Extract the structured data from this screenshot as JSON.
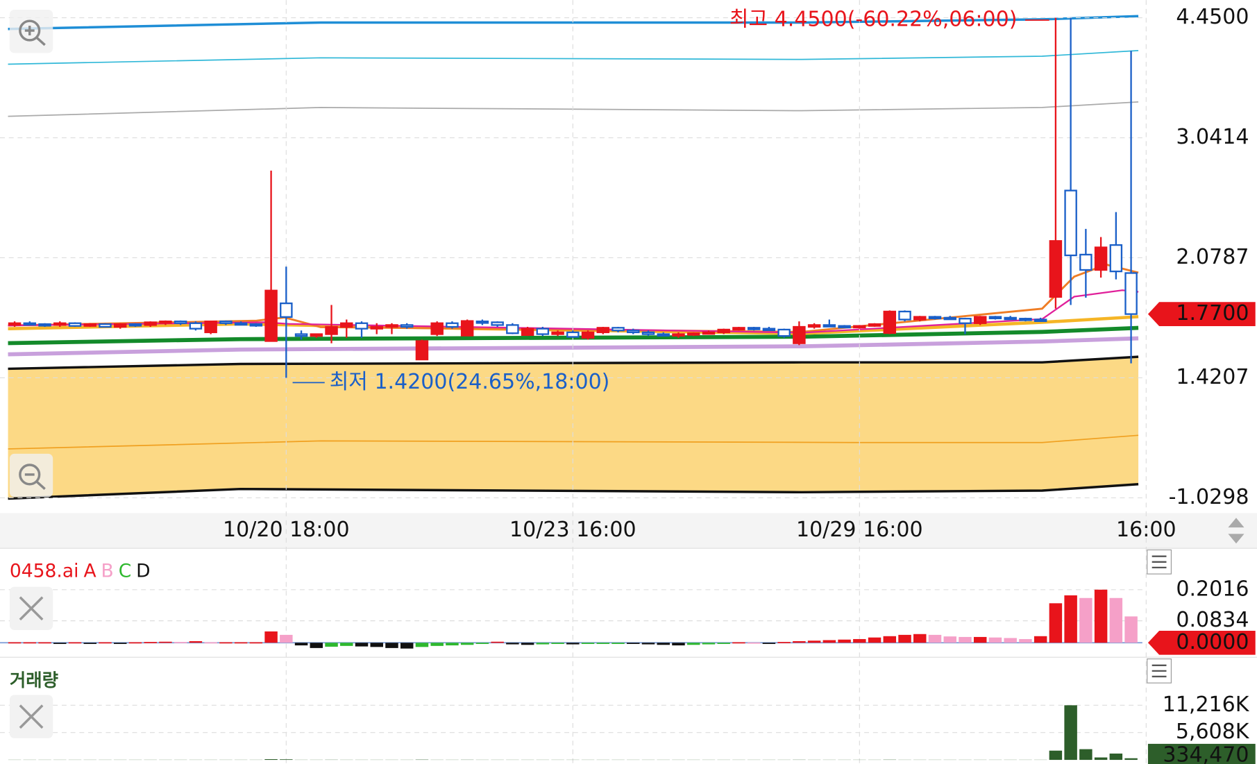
{
  "chart_data": {
    "type": "candlestick",
    "categories": [
      null,
      null,
      null,
      null,
      null,
      null,
      null,
      null,
      null,
      null,
      null,
      null,
      null,
      null,
      null,
      null,
      null,
      null,
      "10/20 18:00",
      null,
      null,
      null,
      null,
      null,
      null,
      null,
      null,
      null,
      null,
      null,
      null,
      null,
      null,
      null,
      null,
      null,
      null,
      "10/23 16:00",
      null,
      null,
      null,
      null,
      null,
      null,
      null,
      null,
      null,
      null,
      null,
      null,
      null,
      null,
      null,
      null,
      null,
      null,
      "10/29 16:00",
      null,
      null,
      null,
      null,
      null,
      null,
      null,
      null,
      null,
      null,
      null,
      null,
      null,
      null,
      null,
      null,
      null,
      null,
      "16:00"
    ],
    "candles": [
      [
        1.715,
        1.73,
        1.7,
        1.72
      ],
      [
        1.72,
        1.73,
        1.71,
        1.715
      ],
      [
        1.715,
        1.72,
        1.7,
        1.71
      ],
      [
        1.71,
        1.73,
        1.7,
        1.72
      ],
      [
        1.72,
        1.725,
        1.7,
        1.705
      ],
      [
        1.705,
        1.72,
        1.7,
        1.715
      ],
      [
        1.715,
        1.72,
        1.7,
        1.7
      ],
      [
        1.7,
        1.72,
        1.69,
        1.715
      ],
      [
        1.715,
        1.72,
        1.7,
        1.71
      ],
      [
        1.71,
        1.73,
        1.7,
        1.725
      ],
      [
        1.725,
        1.735,
        1.71,
        1.73
      ],
      [
        1.73,
        1.735,
        1.71,
        1.72
      ],
      [
        1.72,
        1.73,
        1.68,
        1.69
      ],
      [
        1.67,
        1.73,
        1.66,
        1.73
      ],
      [
        1.73,
        1.735,
        1.71,
        1.72
      ],
      [
        1.72,
        1.73,
        1.71,
        1.715
      ],
      [
        1.715,
        1.72,
        1.7,
        1.71
      ],
      [
        1.622,
        2.778,
        1.62,
        1.899
      ],
      [
        1.829,
        2.03,
        1.42,
        1.754
      ],
      [
        1.66,
        1.68,
        1.63,
        1.65
      ],
      [
        1.65,
        1.66,
        1.64,
        1.66
      ],
      [
        1.66,
        1.82,
        1.61,
        1.7
      ],
      [
        1.7,
        1.74,
        1.64,
        1.72
      ],
      [
        1.72,
        1.73,
        1.64,
        1.69
      ],
      [
        1.69,
        1.72,
        1.66,
        1.7
      ],
      [
        1.7,
        1.72,
        1.66,
        1.71
      ],
      [
        1.71,
        1.72,
        1.69,
        1.7
      ],
      [
        1.521,
        1.63,
        1.52,
        1.622
      ],
      [
        1.66,
        1.73,
        1.65,
        1.72
      ],
      [
        1.72,
        1.73,
        1.69,
        1.7
      ],
      [
        1.652,
        1.74,
        1.65,
        1.732
      ],
      [
        1.73,
        1.74,
        1.71,
        1.725
      ],
      [
        1.725,
        1.73,
        1.7,
        1.71
      ],
      [
        1.71,
        1.72,
        1.66,
        1.665
      ],
      [
        1.655,
        1.7,
        1.65,
        1.69
      ],
      [
        1.69,
        1.7,
        1.65,
        1.66
      ],
      [
        1.66,
        1.68,
        1.65,
        1.67
      ],
      [
        1.67,
        1.68,
        1.64,
        1.645
      ],
      [
        1.64,
        1.68,
        1.63,
        1.67
      ],
      [
        1.67,
        1.7,
        1.66,
        1.695
      ],
      [
        1.695,
        1.7,
        1.67,
        1.68
      ],
      [
        1.68,
        1.69,
        1.66,
        1.67
      ],
      [
        1.67,
        1.68,
        1.65,
        1.66
      ],
      [
        1.66,
        1.67,
        1.65,
        1.655
      ],
      [
        1.655,
        1.67,
        1.64,
        1.66
      ],
      [
        1.66,
        1.67,
        1.65,
        1.665
      ],
      [
        1.665,
        1.68,
        1.66,
        1.67
      ],
      [
        1.67,
        1.69,
        1.66,
        1.685
      ],
      [
        1.685,
        1.7,
        1.68,
        1.695
      ],
      [
        1.695,
        1.7,
        1.68,
        1.69
      ],
      [
        1.69,
        1.7,
        1.68,
        1.685
      ],
      [
        1.685,
        1.69,
        1.64,
        1.65
      ],
      [
        1.61,
        1.73,
        1.6,
        1.7
      ],
      [
        1.7,
        1.72,
        1.69,
        1.71
      ],
      [
        1.71,
        1.74,
        1.7,
        1.705
      ],
      [
        1.705,
        1.71,
        1.7,
        1.7
      ],
      [
        1.7,
        1.71,
        1.69,
        1.705
      ],
      [
        1.705,
        1.72,
        1.7,
        1.715
      ],
      [
        1.666,
        1.79,
        1.66,
        1.784
      ],
      [
        1.784,
        1.79,
        1.73,
        1.74
      ],
      [
        1.74,
        1.76,
        1.73,
        1.755
      ],
      [
        1.755,
        1.76,
        1.74,
        1.75
      ],
      [
        1.75,
        1.76,
        1.74,
        1.745
      ],
      [
        1.745,
        1.75,
        1.66,
        1.72
      ],
      [
        1.72,
        1.76,
        1.71,
        1.755
      ],
      [
        1.755,
        1.76,
        1.74,
        1.75
      ],
      [
        1.75,
        1.76,
        1.74,
        1.745
      ],
      [
        1.745,
        1.75,
        1.73,
        1.74
      ],
      [
        1.74,
        1.75,
        1.73,
        1.735
      ],
      [
        1.864,
        4.45,
        1.8,
        2.2135
      ],
      [
        2.618,
        4.45,
        1.82,
        2.098
      ],
      [
        2.104,
        2.31,
        1.86,
        2.012
      ],
      [
        2.012,
        2.245,
        1.97,
        2.162
      ],
      [
        2.181,
        2.445,
        1.96,
        2.004
      ],
      [
        1.995,
        4.062,
        1.5,
        1.77
      ],
      null
    ],
    "up_color": "#e8141b",
    "down_color": "#1a5fc8",
    "ylim": [
      -1.0298,
      4.45
    ],
    "yticks": [
      4.45,
      3.0414,
      2.0787,
      1.4207,
      -1.0298
    ],
    "ytick_labels": [
      "4.4500",
      "3.0414",
      "2.0787",
      "1.4207",
      "-1.0298"
    ],
    "current_price": {
      "value": 1.77,
      "label": "1.7700"
    },
    "annotations": [
      {
        "text": "최고 4.4500(-60.22%,06:00)",
        "value": 4.45,
        "index": 69,
        "color": "#e8141b"
      },
      {
        "text": "최저 1.4200(24.65%,18:00)",
        "value": 1.42,
        "index": 18,
        "color": "#1a5fc8"
      }
    ],
    "grid": true,
    "indicator": {
      "name": "0458.ai",
      "lines": [
        {
          "name": "A",
          "color": "#e8141b"
        },
        {
          "name": "B",
          "color": "#f5a0c8"
        },
        {
          "name": "C",
          "color": "#2eb82e"
        },
        {
          "name": "D",
          "color": "#111111"
        }
      ],
      "values": [
        0.002,
        0.002,
        0.002,
        -0.002,
        0.002,
        -0.002,
        0.002,
        -0.003,
        0.002,
        0.003,
        0.004,
        0.003,
        0.006,
        0.002,
        0.002,
        0.002,
        0.002,
        0.043,
        0.03,
        -0.01,
        -0.02,
        -0.015,
        -0.012,
        -0.014,
        -0.016,
        -0.02,
        -0.022,
        -0.016,
        -0.012,
        -0.01,
        -0.008,
        -0.002,
        0.004,
        -0.006,
        -0.008,
        -0.006,
        -0.004,
        -0.006,
        -0.004,
        -0.004,
        -0.003,
        -0.004,
        -0.006,
        -0.008,
        -0.01,
        -0.008,
        -0.006,
        -0.002,
        0.002,
        0.001,
        -0.002,
        0.003,
        0.006,
        0.008,
        0.01,
        0.012,
        0.014,
        0.02,
        0.025,
        0.03,
        0.033,
        0.03,
        0.024,
        0.022,
        0.022,
        0.02,
        0.018,
        0.014,
        0.025,
        0.15,
        0.18,
        0.17,
        0.2016,
        0.17,
        0.1,
        null
      ],
      "ylim": [
        -0.04,
        0.31
      ],
      "yticks": [
        {
          "value": 0.2016,
          "label": "0.2016"
        },
        {
          "value": 0.0834,
          "label": "0.0834"
        }
      ],
      "current": {
        "value": 0,
        "label": "0.0000"
      }
    },
    "volume": {
      "name": "거래량",
      "color": "#2d5e2a",
      "values": [
        30000,
        30000,
        30000,
        30000,
        30000,
        30000,
        30000,
        30000,
        30000,
        30000,
        30000,
        30000,
        30000,
        30000,
        30000,
        30000,
        30000,
        150000,
        120000,
        30000,
        30000,
        40000,
        30000,
        30000,
        30000,
        30000,
        30000,
        60000,
        30000,
        30000,
        40000,
        30000,
        30000,
        30000,
        30000,
        30000,
        30000,
        30000,
        30000,
        30000,
        30000,
        30000,
        30000,
        30000,
        30000,
        30000,
        30000,
        30000,
        30000,
        30000,
        30000,
        30000,
        40000,
        30000,
        30000,
        30000,
        30000,
        30000,
        50000,
        30000,
        30000,
        30000,
        30000,
        30000,
        30000,
        30000,
        30000,
        30000,
        30000,
        1900000,
        11216000,
        2200000,
        500000,
        1300000,
        334470,
        null
      ],
      "ylim": [
        0,
        13000000
      ],
      "yticks": [
        {
          "value": 11216000,
          "label": "11,216K"
        },
        {
          "value": 5608000,
          "label": "5,608K"
        }
      ],
      "current": {
        "value": 334470,
        "label": "334,470"
      }
    }
  }
}
